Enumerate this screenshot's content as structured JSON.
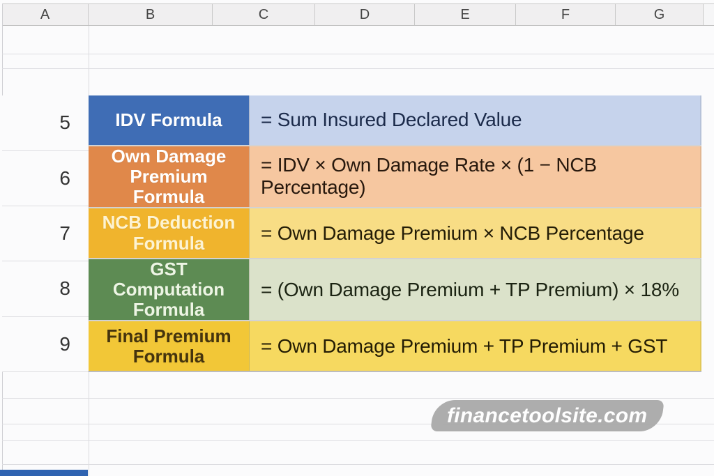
{
  "columns": [
    "A",
    "B",
    "C",
    "D",
    "E",
    "F",
    "G"
  ],
  "grid": {
    "visible_row_numbers": [
      "5",
      "6",
      "7",
      "8",
      "9"
    ]
  },
  "rows": [
    {
      "num": "5",
      "label": "IDV Formula",
      "formula": "= Sum Insured Declared Value",
      "label_bg": "#3f6db5",
      "label_fg": "#ffffff",
      "value_bg": "#c6d3ec",
      "value_fg": "#1b2a4a"
    },
    {
      "num": "6",
      "label": "Own Damage Premium Formula",
      "formula": "= IDV × Own Damage Rate × (1 − NCB Percentage)",
      "label_bg": "#e0884a",
      "label_fg": "#ffffff",
      "value_bg": "#f6c7a0",
      "value_fg": "#27180d"
    },
    {
      "num": "7",
      "label": "NCB Deduction Formula",
      "formula": "= Own Damage Premium × NCB Percentage",
      "label_bg": "#f0b42d",
      "label_fg": "#fdf3d2",
      "value_bg": "#f8dd85",
      "value_fg": "#241d07"
    },
    {
      "num": "8",
      "label": "GST Computation Formula",
      "formula": "= (Own Damage Premium + TP Premium) × 18%",
      "label_bg": "#5d8b53",
      "label_fg": "#edf5e4",
      "value_bg": "#dbe2ca",
      "value_fg": "#1b2312"
    },
    {
      "num": "9",
      "label": "Final Premium Formula",
      "formula": "= Own Damage Premium + TP Premium + GST",
      "label_bg": "#f2c737",
      "label_fg": "#45340e",
      "value_bg": "#f6d960",
      "value_fg": "#231c04"
    }
  ],
  "watermark": {
    "text": "financetoolsite.com",
    "bg": "#a9a9a9",
    "fg": "#ffffff"
  }
}
